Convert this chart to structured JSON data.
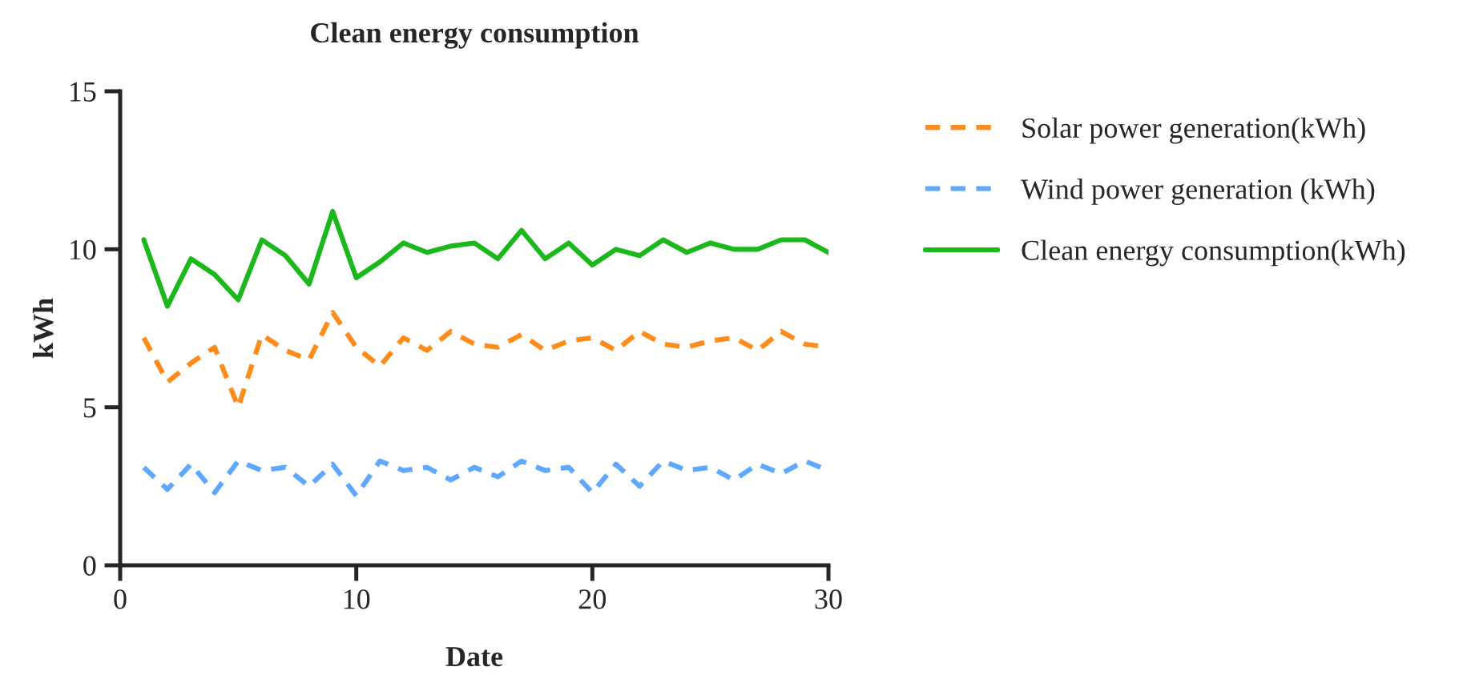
{
  "chart_data": {
    "type": "line",
    "title": "Clean energy consumption",
    "xlabel": "Date",
    "ylabel": "kWh",
    "x": [
      1,
      2,
      3,
      4,
      5,
      6,
      7,
      8,
      9,
      10,
      11,
      12,
      13,
      14,
      15,
      16,
      17,
      18,
      19,
      20,
      21,
      22,
      23,
      24,
      25,
      26,
      27,
      28,
      29,
      30
    ],
    "series": [
      {
        "name": "Solar power generation(kWh)",
        "color": "#ff8c1a",
        "line_style": "dashed",
        "values": [
          7.2,
          5.8,
          6.4,
          6.9,
          5.0,
          7.3,
          6.8,
          6.5,
          8.0,
          6.9,
          6.3,
          7.2,
          6.8,
          7.4,
          7.0,
          6.9,
          7.3,
          6.8,
          7.1,
          7.2,
          6.8,
          7.4,
          7.0,
          6.9,
          7.1,
          7.2,
          6.8,
          7.4,
          7.0,
          6.9
        ]
      },
      {
        "name": "Wind power generation (kWh)",
        "color": "#5ea8ff",
        "line_style": "dashed",
        "values": [
          3.1,
          2.4,
          3.2,
          2.3,
          3.3,
          3.0,
          3.1,
          2.5,
          3.2,
          2.2,
          3.3,
          3.0,
          3.1,
          2.7,
          3.1,
          2.8,
          3.3,
          3.0,
          3.1,
          2.3,
          3.2,
          2.5,
          3.3,
          3.0,
          3.1,
          2.7,
          3.2,
          2.9,
          3.3,
          3.0
        ]
      },
      {
        "name": "Clean energy consumption(kWh)",
        "color": "#1ab81a",
        "line_style": "solid",
        "values": [
          10.3,
          8.2,
          9.7,
          9.2,
          8.4,
          10.3,
          9.8,
          8.9,
          11.2,
          9.1,
          9.6,
          10.2,
          9.9,
          10.1,
          10.2,
          9.7,
          10.6,
          9.7,
          10.2,
          9.5,
          10.0,
          9.8,
          10.3,
          9.9,
          10.2,
          10.0,
          10.0,
          10.3,
          10.3,
          9.9
        ]
      }
    ],
    "xlim": [
      0,
      30
    ],
    "xticks": [
      0,
      10,
      20,
      30
    ],
    "ylim": [
      0,
      15
    ],
    "yticks": [
      0,
      5,
      10,
      15
    ],
    "grid": false,
    "legend": "top right",
    "marker": "none"
  }
}
